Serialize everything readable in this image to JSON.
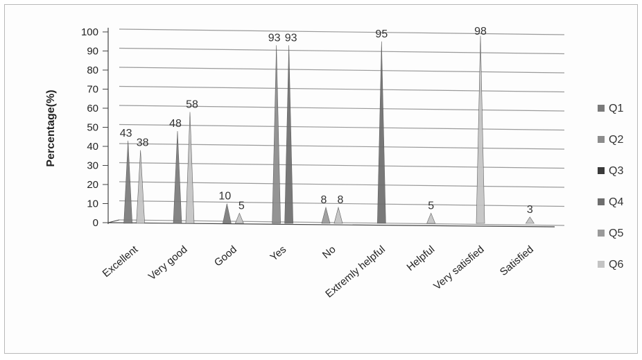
{
  "chart_data": {
    "type": "bar",
    "title": "",
    "xlabel": "",
    "ylabel": "Percentage(%)",
    "ylim": [
      0,
      100
    ],
    "yticks": [
      0,
      10,
      20,
      30,
      40,
      50,
      60,
      70,
      80,
      90,
      100
    ],
    "grid": true,
    "legend_position": "right",
    "categories": [
      "Excellent",
      "Very good",
      "Good",
      "Yes",
      "No",
      "Extremly helpful",
      "Helpful",
      "Very satisfied",
      "Satisfied"
    ],
    "series": [
      {
        "name": "Q1",
        "color": "#7a7a7a",
        "values": [
          43,
          48,
          10,
          null,
          null,
          null,
          null,
          null,
          null
        ]
      },
      {
        "name": "Q2",
        "color": "#8c8c8c",
        "values": [
          null,
          null,
          null,
          93,
          null,
          null,
          null,
          null,
          null
        ]
      },
      {
        "name": "Q3",
        "color": "#3a3a3a",
        "values": [
          null,
          null,
          null,
          null,
          null,
          null,
          null,
          null,
          null
        ]
      },
      {
        "name": "Q4",
        "color": "#6e6e6e",
        "values": [
          null,
          null,
          null,
          93,
          null,
          95,
          null,
          null,
          null
        ]
      },
      {
        "name": "Q5",
        "color": "#9a9a9a",
        "values": [
          null,
          null,
          null,
          null,
          8,
          null,
          null,
          null,
          null
        ]
      },
      {
        "name": "Q6",
        "color": "#c4c4c4",
        "values": [
          38,
          58,
          5,
          null,
          8,
          null,
          5,
          98,
          3
        ]
      }
    ],
    "data_labels": [
      {
        "category": "Excellent",
        "text": "43"
      },
      {
        "category": "Excellent",
        "text": "38"
      },
      {
        "category": "Very good",
        "text": "48"
      },
      {
        "category": "Very good",
        "text": "58"
      },
      {
        "category": "Good",
        "text": "10"
      },
      {
        "category": "Good",
        "text": "5"
      },
      {
        "category": "Yes",
        "text": "93"
      },
      {
        "category": "Yes",
        "text": "93"
      },
      {
        "category": "No",
        "text": "8"
      },
      {
        "category": "No",
        "text": "8"
      },
      {
        "category": "Extremly helpful",
        "text": "95"
      },
      {
        "category": "Helpful",
        "text": "5"
      },
      {
        "category": "Very satisfied",
        "text": "98"
      },
      {
        "category": "Satisfied",
        "text": "3"
      }
    ]
  }
}
